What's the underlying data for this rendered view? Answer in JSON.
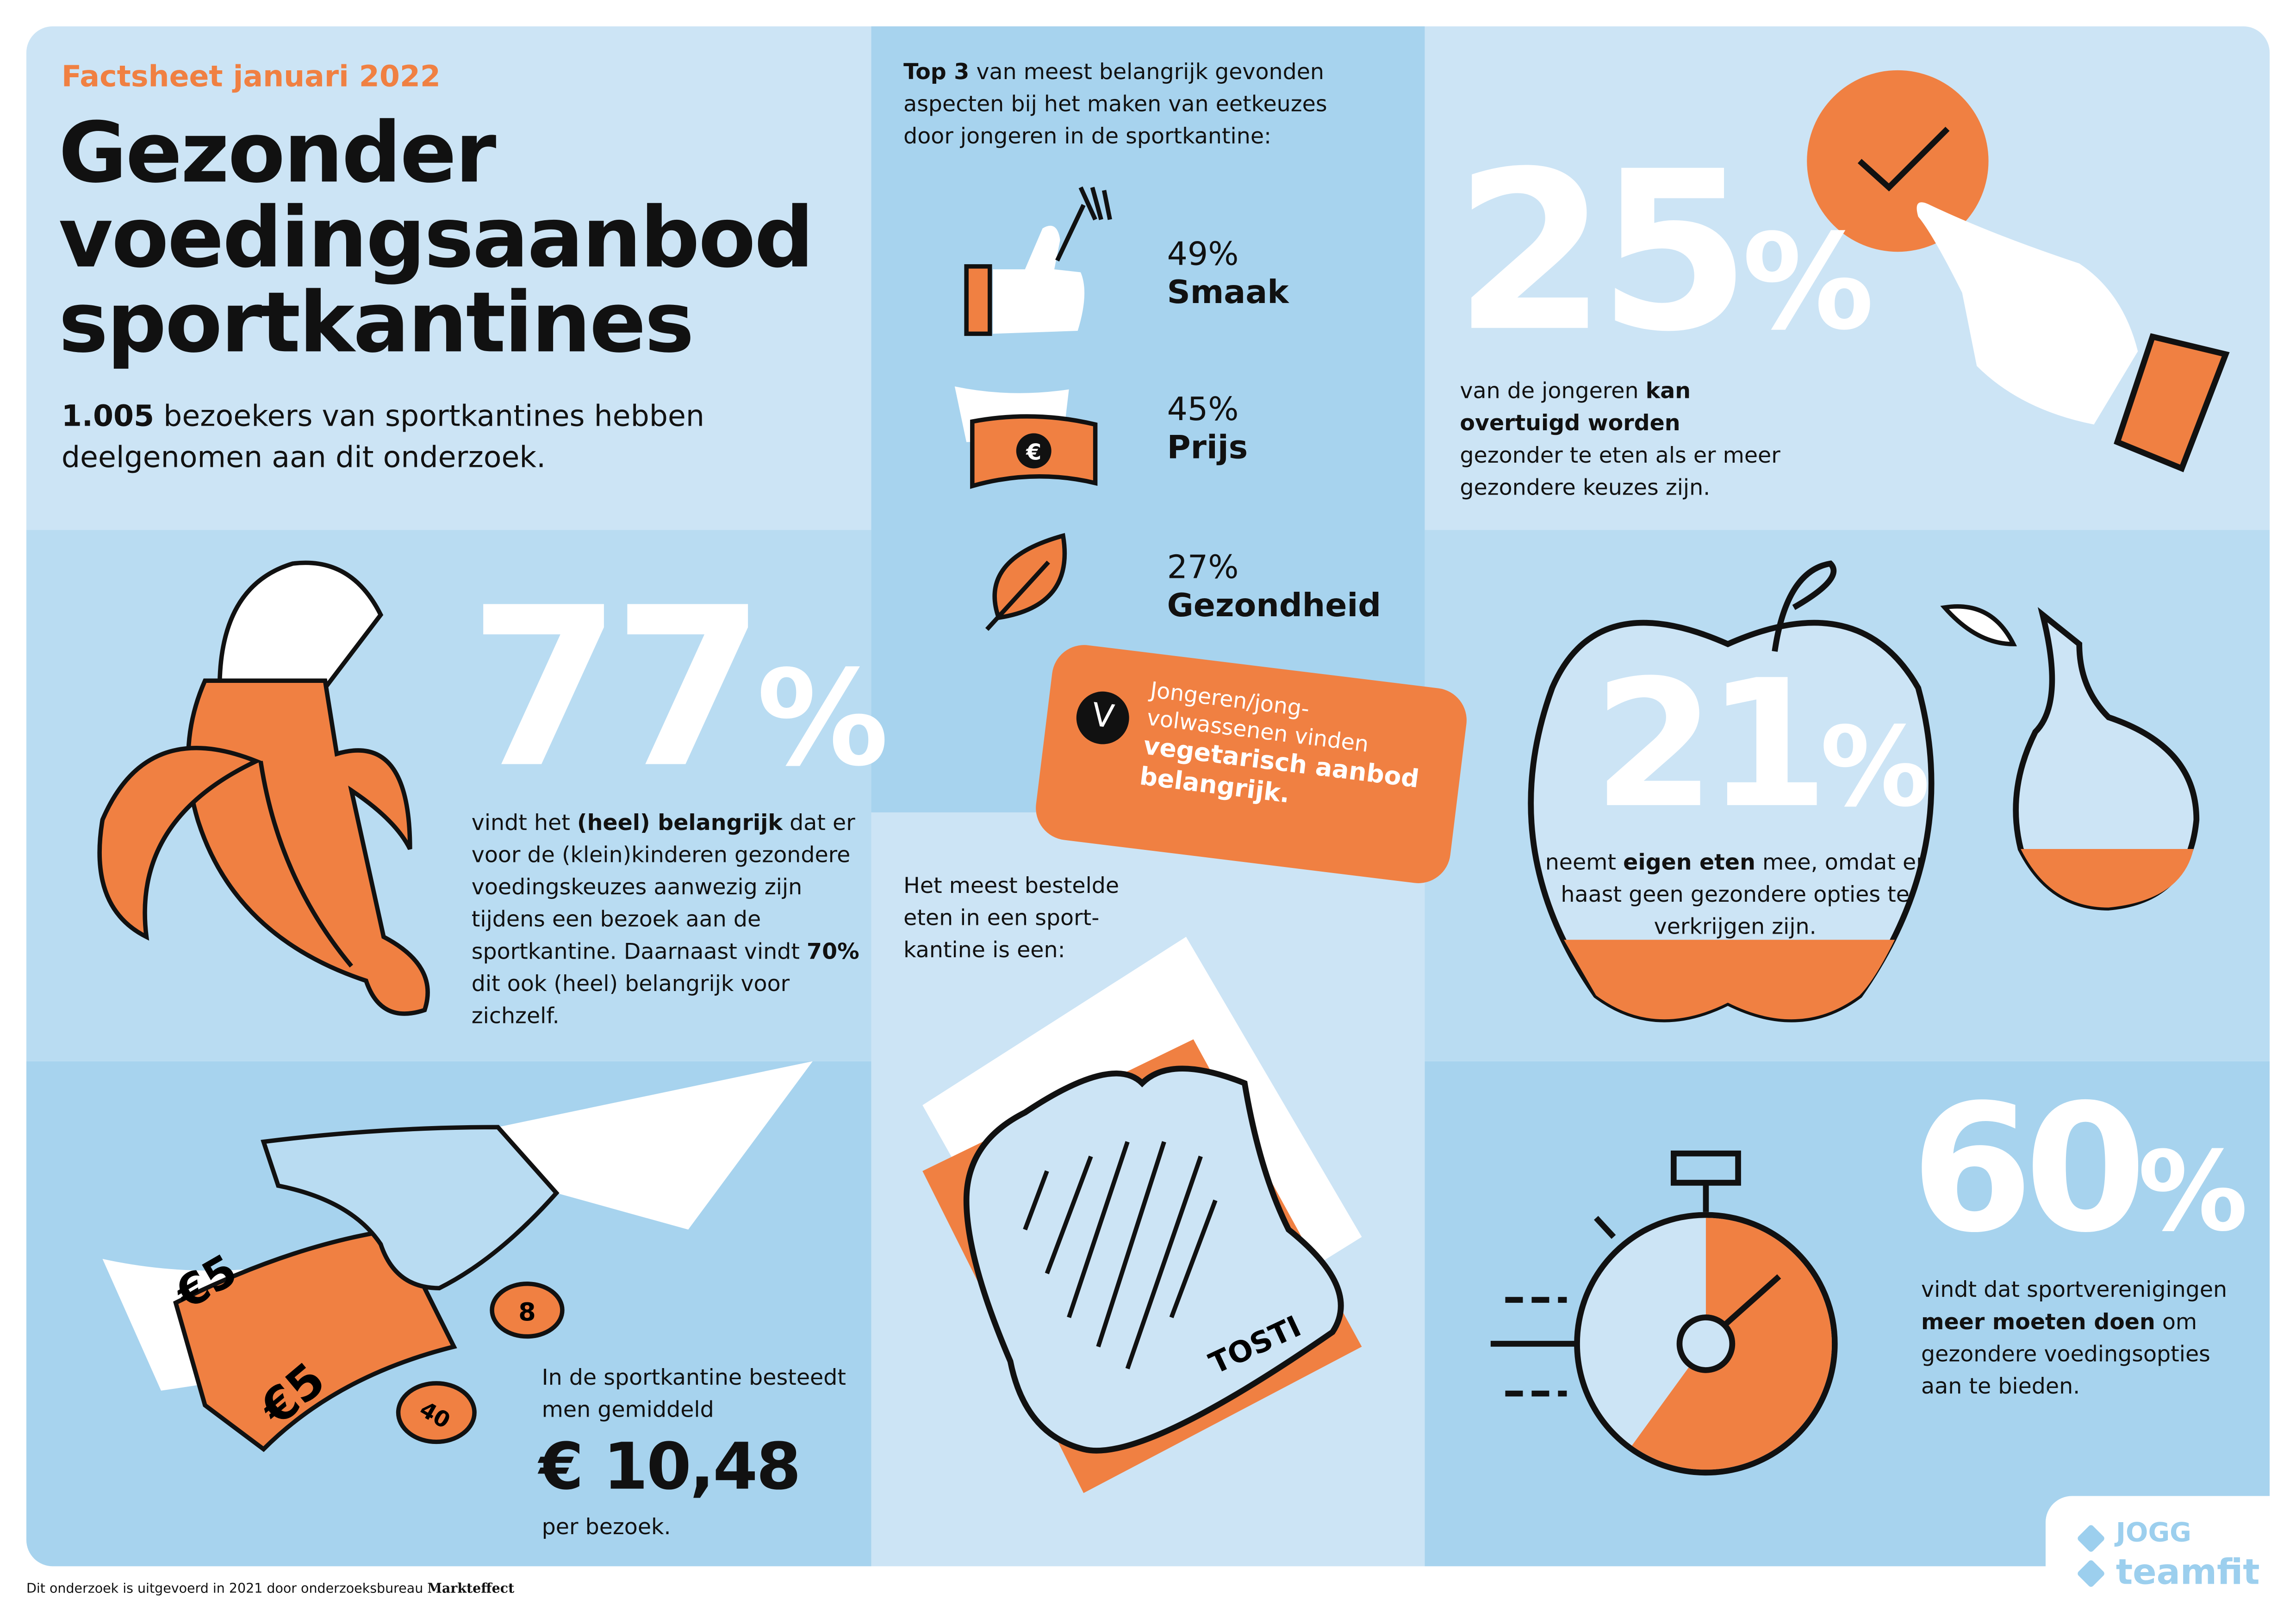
{
  "header": {
    "kicker": "Factsheet januari 2022",
    "title_lines": [
      "Gezonder",
      "voedingsaanbod",
      "sportkantines"
    ],
    "intro_bold": "1.005",
    "intro_rest": " bezoekers van sportkantines hebben deelgenomen aan dit onderzoek."
  },
  "top3": {
    "intro_bold": "Top 3",
    "intro_rest": " van meest belangrijk gevonden aspecten bij het maken van eetkeuzes door jongeren in de sportkantine:",
    "items": [
      {
        "percent": "49%",
        "label": "Smaak",
        "icon": "thumbs-up-fork-icon"
      },
      {
        "percent": "45%",
        "label": "Prijs",
        "icon": "euro-banknote-icon"
      },
      {
        "percent": "27%",
        "label": "Gezondheid",
        "icon": "leaf-icon"
      }
    ]
  },
  "vegetarian": {
    "line1": "Jongeren/jong-",
    "line2": "volwassenen vinden",
    "bold1": "vegetarisch aanbod",
    "bold2": "belangrijk."
  },
  "stat25": {
    "value": "25",
    "unit": "%",
    "pre": "van de jongeren ",
    "bold": "kan overtuigd worden",
    "post": " gezonder te eten als er meer gezondere keuzes zijn."
  },
  "stat77": {
    "value": "77",
    "unit": "%",
    "pre": "vindt het ",
    "bold": "(heel) belangrijk",
    "mid": " dat er voor de (klein)kinderen gezondere voedingskeuzes aanwezig zijn tijdens een bezoek aan de sportkantine. Daarnaast vindt ",
    "bold2": "70%",
    "post": " dit ook (heel) belangrijk voor zichzelf."
  },
  "stat21": {
    "value": "21",
    "unit": "%",
    "pre": "neemt ",
    "bold": "eigen eten",
    "post": " mee, omdat er haast geen gezondere opties te verkrijgen zijn."
  },
  "tosti": {
    "text": "Het meest bestelde eten in een sport-kantine is een:",
    "label": "TOSTI"
  },
  "spend": {
    "text": "In de sportkantine besteedt men gemiddeld",
    "amount": "€ 10,48",
    "suffix": "per bezoek.",
    "note1": "€5",
    "note2": "€5",
    "coin1": "8",
    "coin2": "40"
  },
  "stat60": {
    "value": "60",
    "unit": "%",
    "pre": "vindt dat sportverenigingen ",
    "bold": "meer moeten doen",
    "post": " om gezondere voedingsopties aan te bieden.",
    "gauge_fraction": 0.6
  },
  "footer": {
    "text": "Dit onderzoek is uitgevoerd in 2021 door onderzoeksbureau ",
    "brand": "Markteffect"
  },
  "logo": {
    "line1": "JOGG",
    "line2": "teamfit"
  },
  "colors": {
    "orange": "#f08042",
    "light_blue": "#cce4f5",
    "mid_blue": "#b9dcf2",
    "dark_blue": "#a7d3ee",
    "logo_blue": "#9ccfee"
  }
}
